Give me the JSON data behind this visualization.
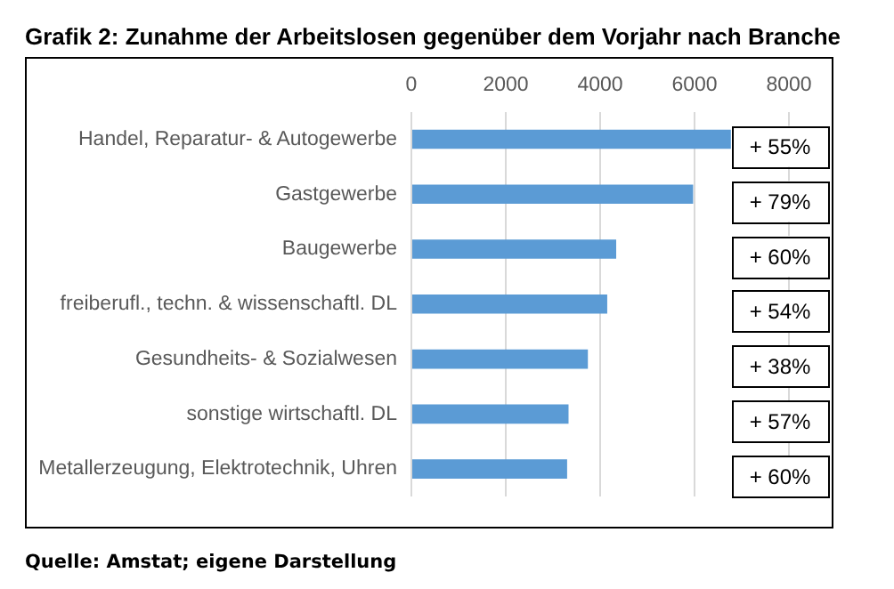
{
  "chart_data": {
    "type": "bar",
    "orientation": "horizontal",
    "title": "Grafik 2: Zunahme der Arbeitslosen gegenüber dem Vorjahr nach Branche",
    "categories": [
      "Handel, Reparatur- & Autogewerbe",
      "Gastgewerbe",
      "Baugewerbe",
      "freiberufl., techn. & wissenschaftl. DL",
      "Gesundheits- & Sozialwesen",
      "sonstige wirtschaftl. DL",
      "Metallerzeugung, Elektrotechnik, Uhren"
    ],
    "values": [
      6770,
      5970,
      4340,
      4150,
      3740,
      3330,
      3300
    ],
    "color": "#5b9bd5",
    "xlim": [
      0,
      8000
    ],
    "xticks": [
      0,
      2000,
      4000,
      6000,
      8000
    ],
    "grid": "x",
    "legend": false,
    "annotations": [
      "+ 55%",
      "+ 79%",
      "+ 60%",
      "+ 54%",
      "+ 38%",
      "+ 57%",
      "+ 60%",
      "Quelle: Amstat; eigene Darstellung"
    ]
  }
}
